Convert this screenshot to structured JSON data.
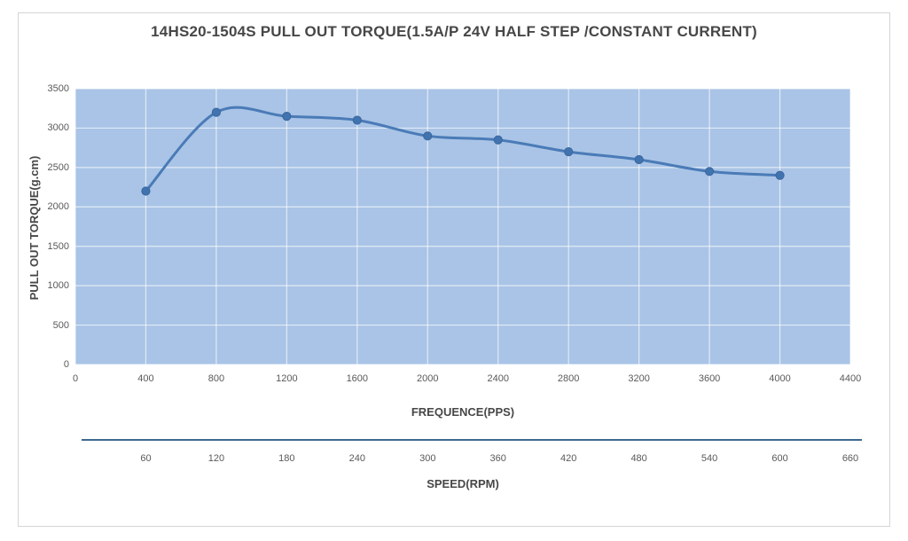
{
  "title": "14HS20-1504S PULL OUT TORQUE(1.5A/P 24V HALF STEP /CONSTANT CURRENT)",
  "chart_data": {
    "type": "line",
    "title": "14HS20-1504S PULL OUT TORQUE(1.5A/P 24V HALF STEP /CONSTANT CURRENT)",
    "xlabel": "FREQUENCE(PPS)",
    "ylabel": "PULL OUT TORQUE(g.cm)",
    "x2label": "SPEED(RPM)",
    "xlim": [
      0,
      4400
    ],
    "ylim": [
      0,
      3500
    ],
    "x_ticks": [
      0,
      400,
      800,
      1200,
      1600,
      2000,
      2400,
      2800,
      3200,
      3600,
      4000,
      4400
    ],
    "y_ticks": [
      0,
      500,
      1000,
      1500,
      2000,
      2500,
      3000,
      3500
    ],
    "x2_ticks": [
      60,
      120,
      180,
      240,
      300,
      360,
      420,
      480,
      540,
      600,
      660
    ],
    "x2_units_per_x": 0.15,
    "grid": true,
    "legend": "none",
    "smooth": true,
    "series": [
      {
        "name": "pull-out-torque",
        "x": [
          400,
          800,
          1200,
          1600,
          2000,
          2400,
          2800,
          3200,
          3600,
          4000
        ],
        "values": [
          2200,
          3200,
          3150,
          3100,
          2900,
          2850,
          2700,
          2600,
          2450,
          2400
        ]
      }
    ]
  },
  "colors": {
    "page_bg": "#ffffff",
    "frame_border": "#d5d5d5",
    "plot_bg": "#a9c4e6",
    "grid": "#ffffff",
    "line": "#4a7bb7",
    "marker": "#4173ae",
    "marker_stroke": "#3a67a0",
    "tick_text": "#595959",
    "axis_title_text": "#474747",
    "speed_axis_line": "#3e6991"
  }
}
